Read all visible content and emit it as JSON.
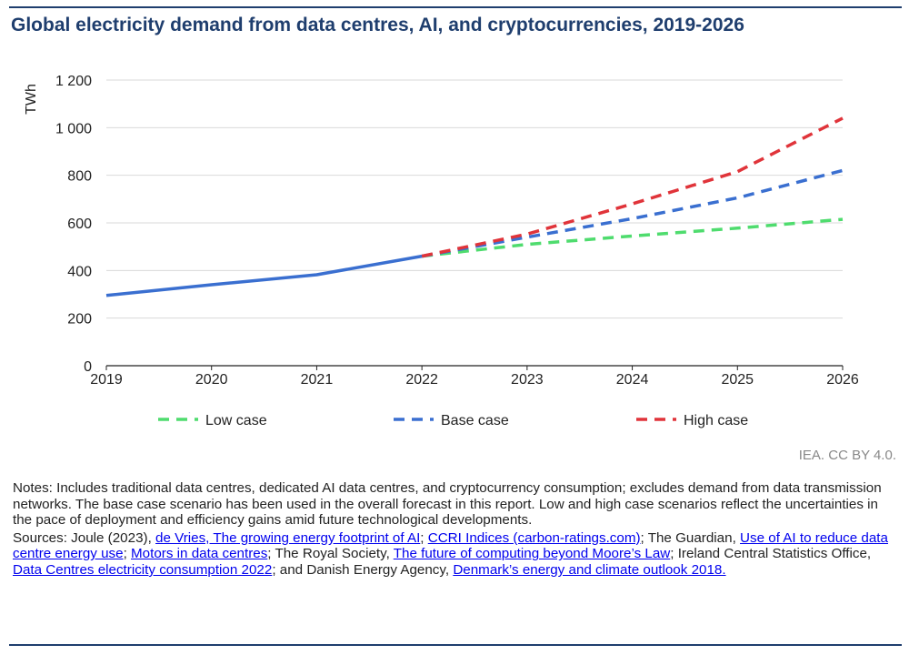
{
  "title": "Global electricity demand from data centres, AI, and cryptocurrencies, 2019-2026",
  "credit": "IEA. CC BY 4.0.",
  "notes": "Notes: Includes traditional data centres, dedicated AI data centres, and cryptocurrency consumption; excludes demand from data transmission networks. The base case scenario has been used in the overall forecast in this report. Low and high case scenarios reflect the uncertainties in the pace of deployment and efficiency gains amid future technological developments.",
  "sources": {
    "prefix": "Sources: Joule (2023), ",
    "link1": "de Vries, The growing energy footprint of AI",
    "sep1": "; ",
    "link2": "CCRI Indices (carbon-ratings.com)",
    "sep2": "; The Guardian, ",
    "link3": "Use of AI to reduce data centre energy use",
    "sep3": "; ",
    "link4": "Motors in data centres",
    "sep4": "; The Royal Society, ",
    "link5": "The future of computing beyond Moore’s Law",
    "sep5": "; Ireland Central Statistics Office, ",
    "link6": "Data Centres electricity consumption 2022",
    "sep6": "; and Danish Energy Agency, ",
    "link7": "Denmark’s energy and climate outlook 2018."
  },
  "chart_data": {
    "type": "line",
    "title": "Global electricity demand from data centres, AI, and cryptocurrencies, 2019-2026",
    "xlabel": "",
    "ylabel": "TWh",
    "x": [
      2019,
      2020,
      2021,
      2022,
      2023,
      2024,
      2025,
      2026
    ],
    "ylim": [
      0,
      1200
    ],
    "yticks": [
      0,
      200,
      400,
      600,
      800,
      1000,
      1200
    ],
    "ytick_labels": [
      "0",
      "200",
      "400",
      "600",
      "800",
      "1 000",
      "1 200"
    ],
    "grid": true,
    "legend_position": "bottom",
    "historical": {
      "x": [
        2019,
        2020,
        2021,
        2022
      ],
      "values": [
        295,
        340,
        382,
        460
      ],
      "color": "#3a6fd0"
    },
    "series": [
      {
        "name": "Low case",
        "x": [
          2022,
          2023,
          2024,
          2025,
          2026
        ],
        "values": [
          460,
          510,
          545,
          578,
          615
        ],
        "color": "#4fdc6e",
        "dashed": true
      },
      {
        "name": "Base case",
        "x": [
          2022,
          2023,
          2024,
          2025,
          2026
        ],
        "values": [
          460,
          540,
          618,
          705,
          820
        ],
        "color": "#3a6fd0",
        "dashed": true
      },
      {
        "name": "High case",
        "x": [
          2022,
          2023,
          2024,
          2025,
          2026
        ],
        "values": [
          460,
          553,
          680,
          815,
          1040
        ],
        "color": "#e0343a",
        "dashed": true
      }
    ]
  }
}
